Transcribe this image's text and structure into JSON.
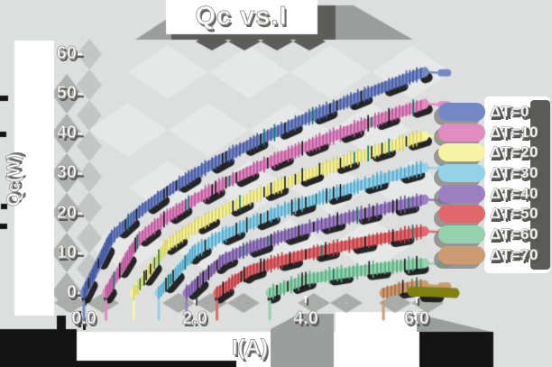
{
  "title": "Qc vs.I",
  "axes": {
    "x": {
      "label": "I(A)",
      "ticks": [
        "0.0",
        "2.0",
        "4.0",
        "6.0"
      ]
    },
    "y": {
      "label": "Qc(W)",
      "ticks_top_to_bottom": [
        "60",
        "50",
        "40",
        "30",
        "20",
        "10",
        "0"
      ]
    }
  },
  "legend": {
    "position": "right",
    "items": [
      {
        "label": "ΔT=0",
        "color": "#7488c5"
      },
      {
        "label": "ΔT=10",
        "color": "#e18cc0"
      },
      {
        "label": "ΔT=20",
        "color": "#f6f4a4"
      },
      {
        "label": "ΔT=30",
        "color": "#93d2e7"
      },
      {
        "label": "ΔT=40",
        "color": "#9d80c2"
      },
      {
        "label": "ΔT=50",
        "color": "#e2686d"
      },
      {
        "label": "ΔT=60",
        "color": "#93d2ac"
      },
      {
        "label": "ΔT=70",
        "color": "#cd9b72"
      }
    ]
  },
  "chart_data": {
    "type": "line",
    "title": "Qc vs.I",
    "xlabel": "I(A)",
    "ylabel": "Qc(W)",
    "xlim": [
      0,
      6.5
    ],
    "ylim": [
      0,
      60
    ],
    "x_ticks": [
      0.0,
      2.0,
      4.0,
      6.0
    ],
    "y_ticks": [
      0,
      10,
      20,
      30,
      40,
      50,
      60
    ],
    "grid": false,
    "legend_position": "right",
    "series": [
      {
        "name": "ΔT=0",
        "color": "#7488c5",
        "tick_color": "#44569c",
        "x": [
          0,
          0.5,
          1,
          1.5,
          2,
          2.5,
          3,
          3.5,
          4,
          4.5,
          5,
          5.5,
          6,
          6.15
        ],
        "y": [
          0,
          14,
          20.4,
          25.5,
          29.9,
          33.8,
          37.4,
          40.7,
          43.8,
          46.7,
          49.5,
          52.2,
          54.8,
          55.5
        ],
        "start_tick": true,
        "tail": true,
        "texture": true
      },
      {
        "name": "ΔT=10",
        "color": "#e18cc0",
        "tick_color": "#b8539a",
        "x": [
          0.4,
          1,
          1.5,
          2,
          2.5,
          3,
          3.5,
          4,
          4.5,
          5,
          5.5,
          6,
          6.15
        ],
        "y": [
          0,
          13.7,
          19.1,
          23.5,
          27.3,
          30.7,
          33.8,
          36.7,
          39.4,
          42,
          44.5,
          46.8,
          47.5
        ],
        "start_tick": true,
        "tail": true,
        "texture": true
      },
      {
        "name": "ΔT=20",
        "color": "#f6f4a4",
        "tick_color": "#d6cf5a",
        "x": [
          0.9,
          1.5,
          2,
          2.5,
          3,
          3.5,
          4,
          4.5,
          5,
          5.5,
          6,
          6.15
        ],
        "y": [
          0,
          12,
          16.7,
          20.5,
          23.9,
          26.8,
          29.6,
          32.1,
          34.5,
          36.7,
          38.9,
          39.5
        ],
        "start_tick": true,
        "tail": true,
        "texture": true
      },
      {
        "name": "ΔT=30",
        "color": "#93d2e7",
        "tick_color": "#4fa3c8",
        "x": [
          1.35,
          2,
          2.5,
          3,
          3.5,
          4,
          4.5,
          5,
          5.5,
          6,
          6.15
        ],
        "y": [
          0,
          10.5,
          14.4,
          17.5,
          20.3,
          22.7,
          25,
          27.1,
          29.1,
          31,
          31.5
        ],
        "start_tick": true,
        "tail": true,
        "texture": true
      },
      {
        "name": "ΔT=40",
        "color": "#9d80c2",
        "tick_color": "#6b4e99",
        "x": [
          1.85,
          2.5,
          3,
          3.5,
          4,
          4.5,
          5,
          5.5,
          6,
          6.15
        ],
        "y": [
          0,
          8.3,
          11.4,
          13.9,
          16.1,
          18,
          19.8,
          21.5,
          23,
          23.5
        ],
        "start_tick": true,
        "tail": true,
        "texture": true
      },
      {
        "name": "ΔT=50",
        "color": "#e2686d",
        "tick_color": "#b23a42",
        "x": [
          2.4,
          3,
          3.5,
          4,
          4.5,
          5,
          5.5,
          6,
          6.15
        ],
        "y": [
          0,
          5.7,
          7.9,
          9.7,
          11.3,
          12.7,
          14,
          15.2,
          15.5
        ],
        "start_tick": true,
        "tail": true,
        "texture": true
      },
      {
        "name": "ΔT=60",
        "color": "#93d2ac",
        "tick_color": "#54a87c",
        "x": [
          3.35,
          4,
          4.5,
          5,
          5.5,
          6,
          6.15
        ],
        "y": [
          0,
          3.4,
          4.6,
          5.6,
          6.5,
          7.3,
          7.5
        ],
        "start_tick": true,
        "tail": true,
        "texture": true
      },
      {
        "name": "ΔT=70",
        "color": "#cd9b72",
        "tick_color": "#a06b42",
        "x": [
          5.4,
          5.75,
          6,
          6.15
        ],
        "y": [
          0,
          1.3,
          1.8,
          2
        ],
        "start_tick": true,
        "tail": true,
        "texture": true
      },
      {
        "name": "(unlabeled)",
        "color": "#80800f",
        "tick_color": "#606008",
        "x": [
          5.9,
          6.3,
          6.7
        ],
        "y": [
          0.4,
          0.3,
          0
        ],
        "start_tick": false,
        "tail": false,
        "texture": false
      }
    ]
  },
  "style": {
    "background": "#dcdfdd",
    "shadow_black": "#141414",
    "blob_gray": "#5c5c5a",
    "mid_gray": "#9a9d9b",
    "text_color": "#ffffff"
  }
}
